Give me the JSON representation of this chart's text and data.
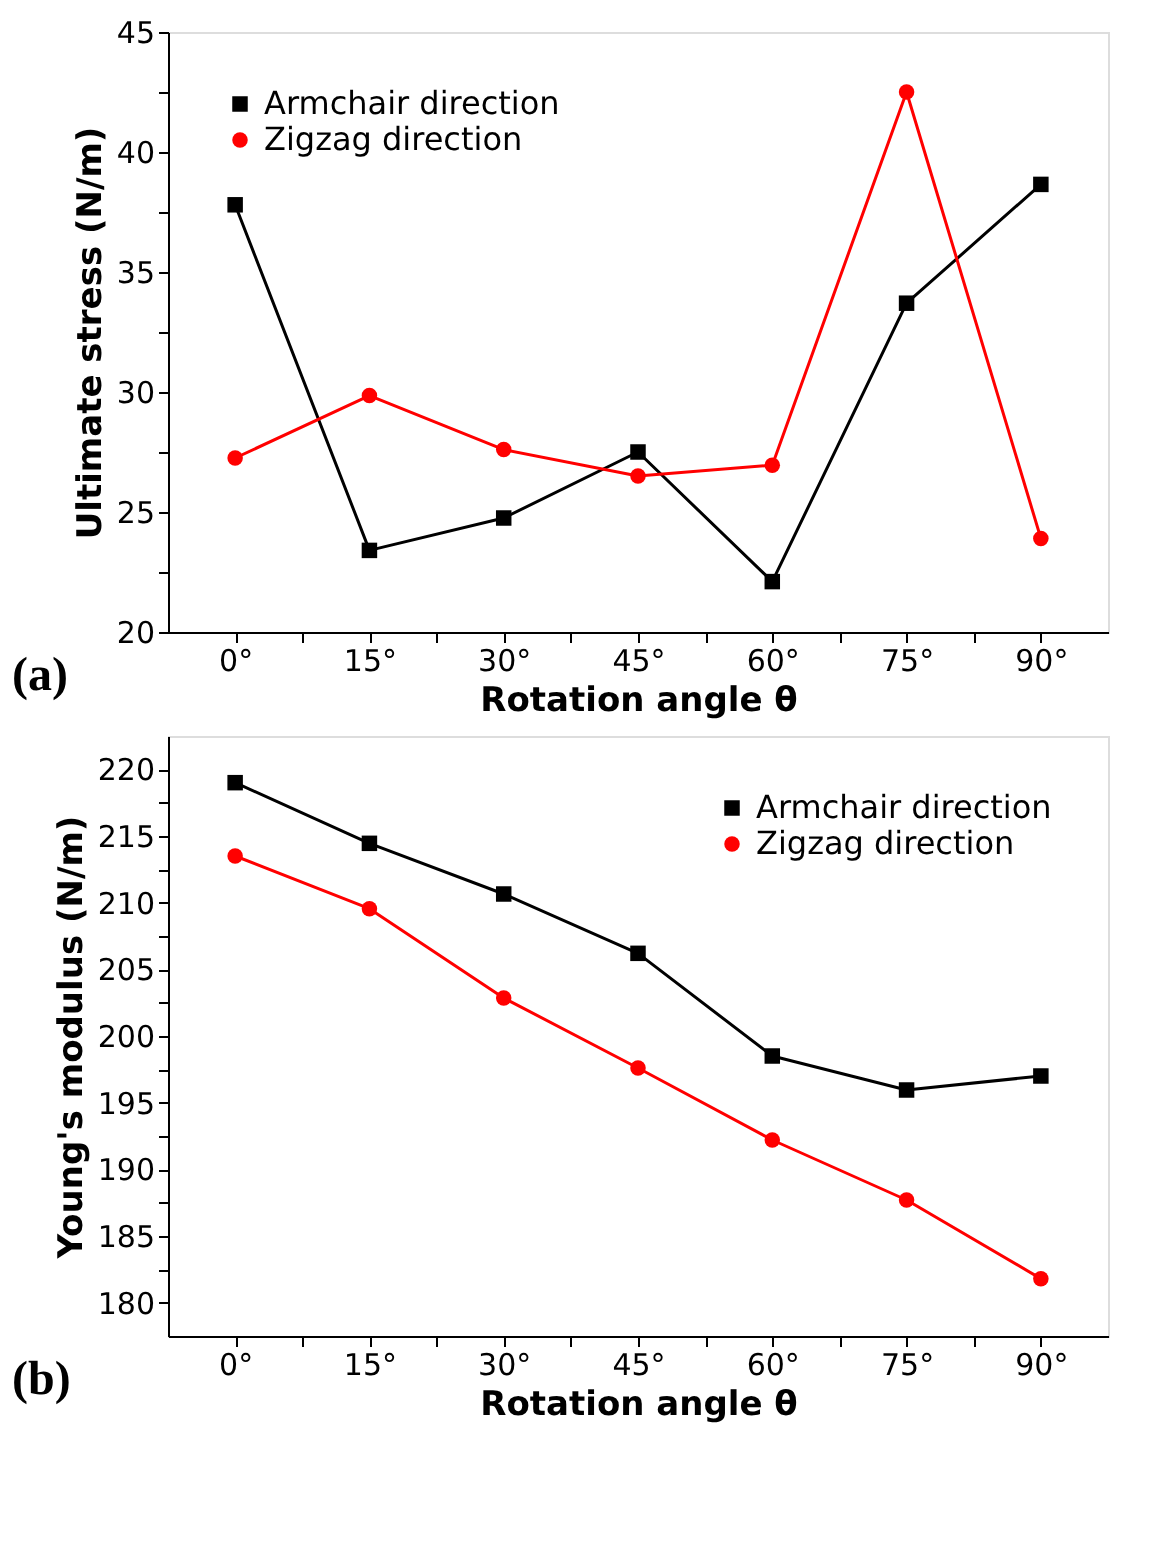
{
  "chart_data": [
    {
      "type": "line",
      "xlabel": "Rotation angle θ",
      "ylabel": "Ultimate stress (N/m)",
      "annotations": [
        "(a)"
      ],
      "x": [
        0,
        15,
        30,
        45,
        60,
        75,
        90
      ],
      "series": [
        {
          "name": "Armchair direction",
          "color": "#000000",
          "marker": "square",
          "values": [
            37.8,
            23.4,
            24.75,
            27.5,
            22.1,
            33.7,
            38.65
          ]
        },
        {
          "name": "Zigzag direction",
          "color": "#ff0000",
          "marker": "circle",
          "values": [
            27.25,
            29.85,
            27.6,
            26.5,
            26.95,
            42.5,
            23.9
          ]
        }
      ],
      "xlim": [
        -7.5,
        97.5
      ],
      "xticks": [
        {
          "value": 0,
          "label": "0°"
        },
        {
          "value": 7.5,
          "label": null
        },
        {
          "value": 15,
          "label": "15°"
        },
        {
          "value": 22.5,
          "label": null
        },
        {
          "value": 30,
          "label": "30°"
        },
        {
          "value": 37.5,
          "label": null
        },
        {
          "value": 45,
          "label": "45°"
        },
        {
          "value": 52.5,
          "label": null
        },
        {
          "value": 60,
          "label": "60°"
        },
        {
          "value": 67.5,
          "label": null
        },
        {
          "value": 75,
          "label": "75°"
        },
        {
          "value": 82.5,
          "label": null
        },
        {
          "value": 90,
          "label": "90°"
        }
      ],
      "ylim": [
        20,
        45
      ],
      "yticks": [
        20,
        {
          "value": 22.5,
          "label": null
        },
        25,
        {
          "value": 27.5,
          "label": null
        },
        30,
        {
          "value": 32.5,
          "label": null
        },
        35,
        {
          "value": 37.5,
          "label": null
        },
        40,
        {
          "value": 42.5,
          "label": null
        },
        45
      ],
      "grid": false,
      "legend": "top left",
      "line_style": "solid"
    },
    {
      "type": "line",
      "xlabel": "Rotation angle θ",
      "ylabel": "Young's modulus (N/m)",
      "annotations": [
        "(b)"
      ],
      "x": [
        0,
        15,
        30,
        45,
        60,
        75,
        90
      ],
      "series": [
        {
          "name": "Armchair direction",
          "color": "#000000",
          "marker": "square",
          "values": [
            219.0,
            214.45,
            210.65,
            206.2,
            198.5,
            195.95,
            197.0
          ]
        },
        {
          "name": "Zigzag direction",
          "color": "#ff0000",
          "marker": "circle",
          "values": [
            213.5,
            209.55,
            202.85,
            197.6,
            192.2,
            187.7,
            181.8
          ]
        }
      ],
      "xlim": [
        -7.5,
        97.5
      ],
      "xticks": [
        {
          "value": 0,
          "label": "0°"
        },
        {
          "value": 7.5,
          "label": null
        },
        {
          "value": 15,
          "label": "15°"
        },
        {
          "value": 22.5,
          "label": null
        },
        {
          "value": 30,
          "label": "30°"
        },
        {
          "value": 37.5,
          "label": null
        },
        {
          "value": 45,
          "label": "45°"
        },
        {
          "value": 52.5,
          "label": null
        },
        {
          "value": 60,
          "label": "60°"
        },
        {
          "value": 67.5,
          "label": null
        },
        {
          "value": 75,
          "label": "75°"
        },
        {
          "value": 82.5,
          "label": null
        },
        {
          "value": 90,
          "label": "90°"
        }
      ],
      "ylim": [
        177.5,
        222.5
      ],
      "yticks": [
        180,
        {
          "value": 182.5,
          "label": null
        },
        185,
        {
          "value": 187.5,
          "label": null
        },
        190,
        {
          "value": 192.5,
          "label": null
        },
        195,
        {
          "value": 197.5,
          "label": null
        },
        200,
        {
          "value": 202.5,
          "label": null
        },
        205,
        {
          "value": 207.5,
          "label": null
        },
        210,
        {
          "value": 212.5,
          "label": null
        },
        215,
        {
          "value": 217.5,
          "label": null
        },
        220
      ],
      "grid": false,
      "legend": "top right",
      "line_style": "solid"
    }
  ]
}
